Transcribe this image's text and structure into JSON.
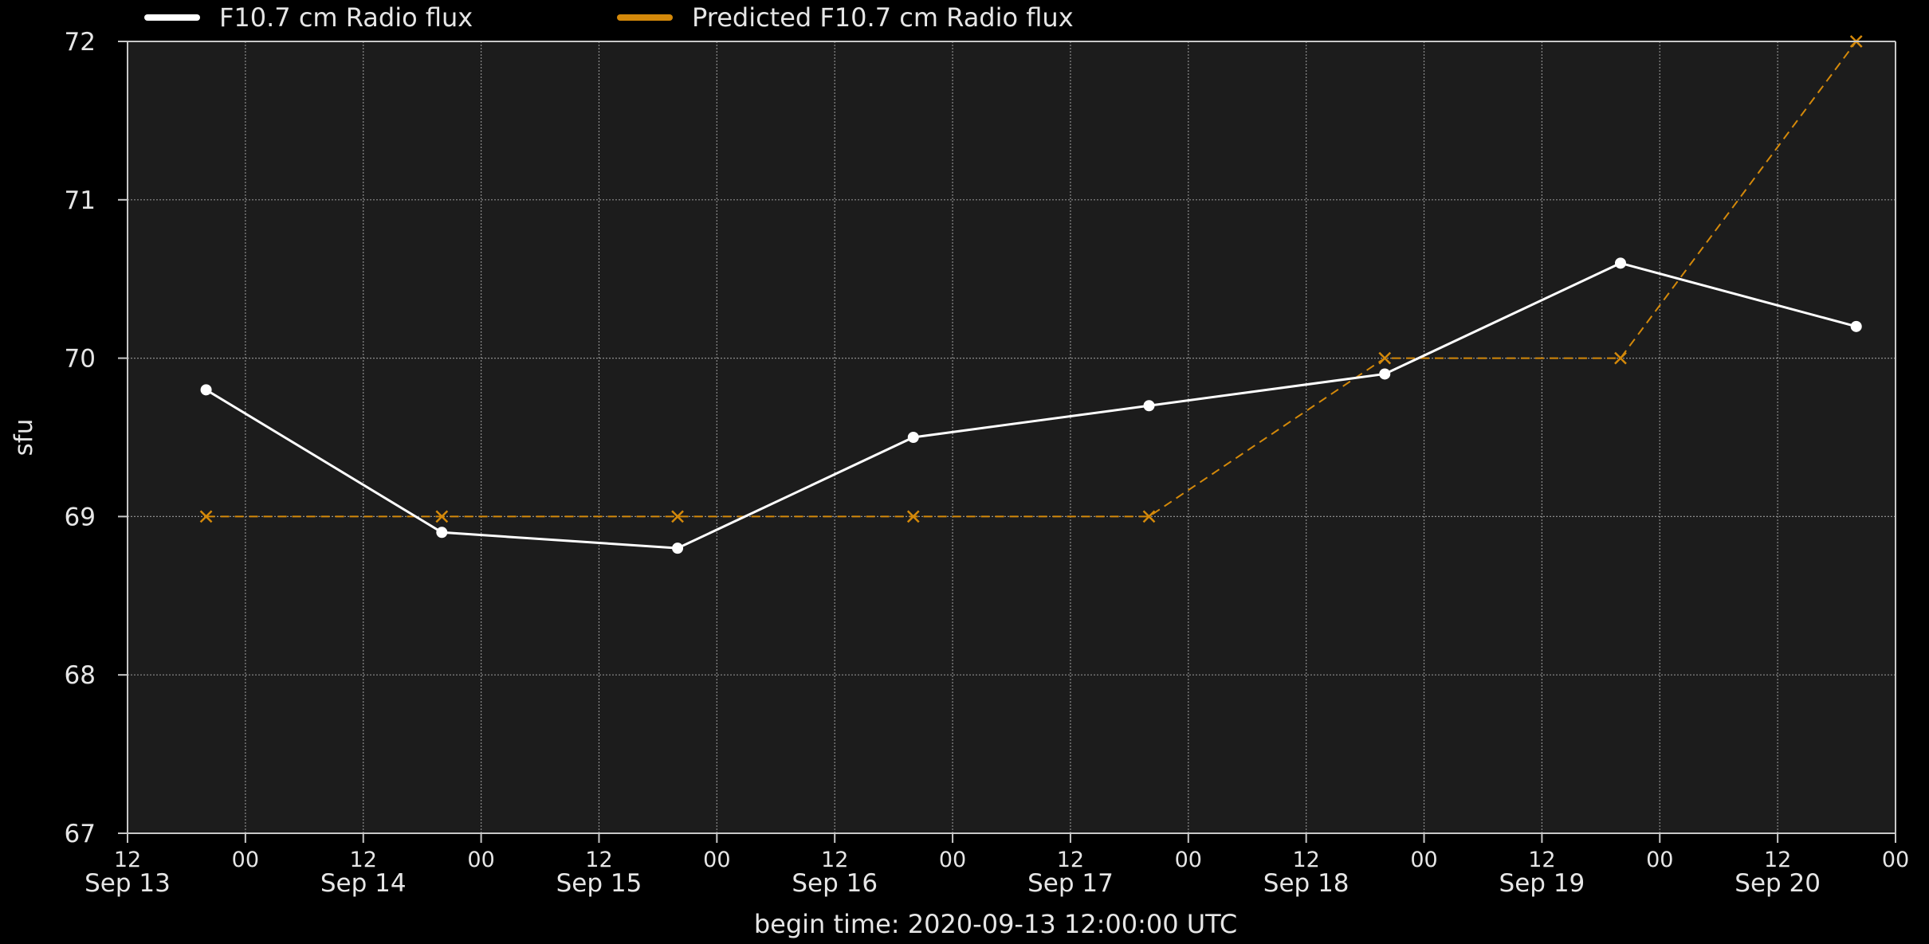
{
  "colors": {
    "page_background": "#000000",
    "plot_background": "#1c1c1c",
    "axes": "#c8c8c8",
    "grid": "#8c8c8c",
    "text": "#e6e6e6",
    "observed_series": "#ffffff",
    "predicted_series": "#d4890a"
  },
  "chart_data": {
    "type": "line",
    "title": "",
    "xlabel": "begin time: 2020-09-13 12:00:00 UTC",
    "ylabel": "sfu",
    "ylim": [
      67,
      72
    ],
    "xlim": [
      "2020-09-13 12:00",
      "2020-09-21 00:00"
    ],
    "grid": true,
    "legend": "top-left, above plot",
    "y_ticks": [
      "67",
      "68",
      "69",
      "70",
      "71",
      "72"
    ],
    "x_ticks": [
      {
        "time": "2020-09-13 12:00",
        "hour": "12",
        "date": "Sep 13"
      },
      {
        "time": "2020-09-14 00:00",
        "hour": "00",
        "date": ""
      },
      {
        "time": "2020-09-14 12:00",
        "hour": "12",
        "date": "Sep 14"
      },
      {
        "time": "2020-09-15 00:00",
        "hour": "00",
        "date": ""
      },
      {
        "time": "2020-09-15 12:00",
        "hour": "12",
        "date": "Sep 15"
      },
      {
        "time": "2020-09-16 00:00",
        "hour": "00",
        "date": ""
      },
      {
        "time": "2020-09-16 12:00",
        "hour": "12",
        "date": "Sep 16"
      },
      {
        "time": "2020-09-17 00:00",
        "hour": "00",
        "date": ""
      },
      {
        "time": "2020-09-17 12:00",
        "hour": "12",
        "date": "Sep 17"
      },
      {
        "time": "2020-09-18 00:00",
        "hour": "00",
        "date": ""
      },
      {
        "time": "2020-09-18 12:00",
        "hour": "12",
        "date": "Sep 18"
      },
      {
        "time": "2020-09-19 00:00",
        "hour": "00",
        "date": ""
      },
      {
        "time": "2020-09-19 12:00",
        "hour": "12",
        "date": "Sep 19"
      },
      {
        "time": "2020-09-20 00:00",
        "hour": "00",
        "date": ""
      },
      {
        "time": "2020-09-20 12:00",
        "hour": "12",
        "date": "Sep 20"
      },
      {
        "time": "2020-09-21 00:00",
        "hour": "00",
        "date": ""
      }
    ],
    "series": [
      {
        "name": "F10.7 cm Radio flux",
        "style": "solid",
        "marker": "circle",
        "color": "#ffffff",
        "x": [
          "2020-09-13 20:00",
          "2020-09-14 20:00",
          "2020-09-15 20:00",
          "2020-09-16 20:00",
          "2020-09-17 20:00",
          "2020-09-18 20:00",
          "2020-09-19 20:00",
          "2020-09-20 20:00"
        ],
        "values": [
          69.8,
          68.9,
          68.8,
          69.5,
          69.7,
          69.9,
          70.6,
          70.2
        ]
      },
      {
        "name": "Predicted F10.7 cm Radio flux",
        "style": "dashed",
        "marker": "x",
        "color": "#d4890a",
        "x": [
          "2020-09-13 20:00",
          "2020-09-14 20:00",
          "2020-09-15 20:00",
          "2020-09-16 20:00",
          "2020-09-17 20:00",
          "2020-09-18 20:00",
          "2020-09-19 20:00",
          "2020-09-20 20:00"
        ],
        "values": [
          69,
          69,
          69,
          69,
          69,
          70,
          70,
          72
        ]
      }
    ]
  }
}
